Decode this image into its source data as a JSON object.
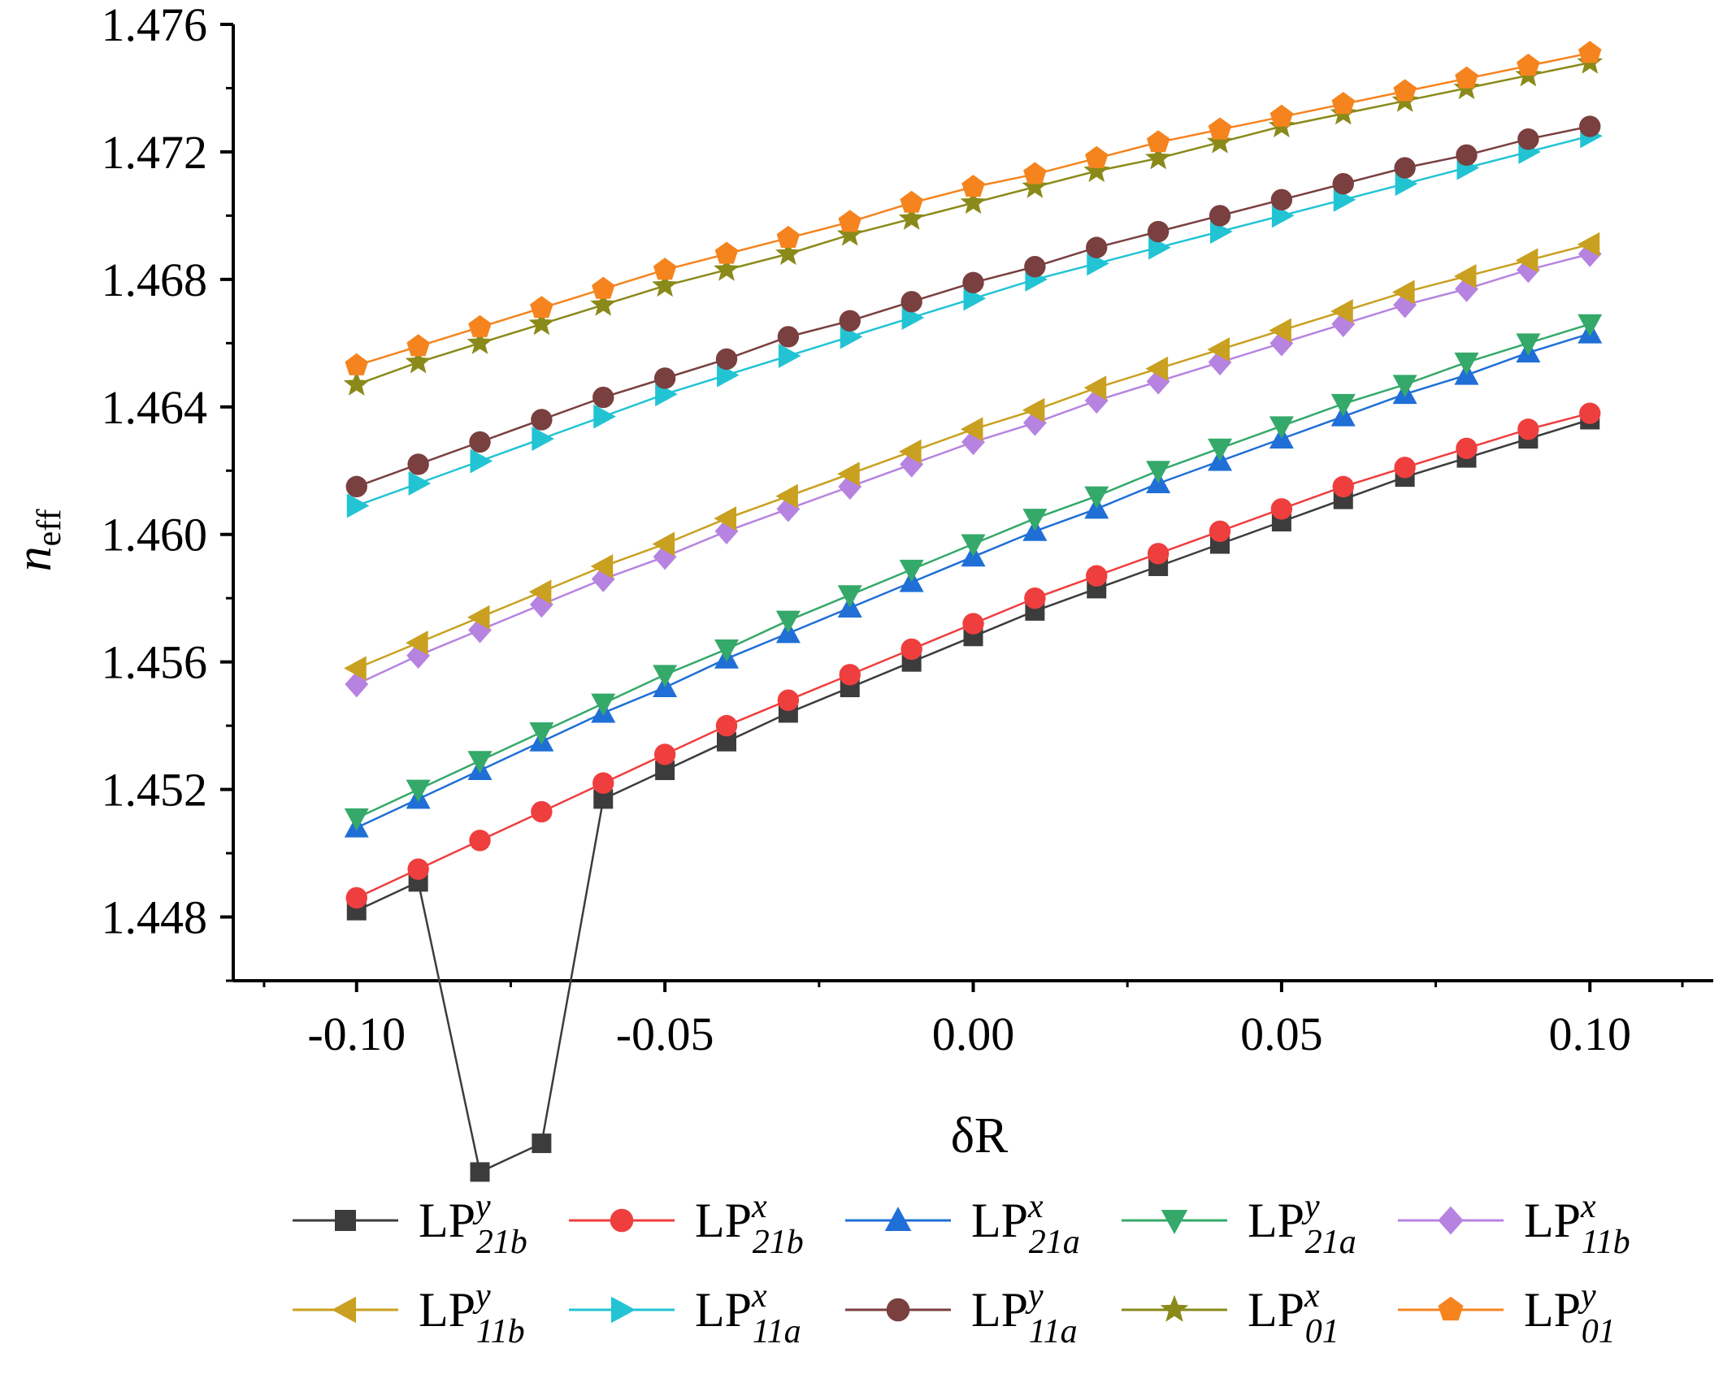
{
  "chart_data": {
    "type": "line",
    "title": "",
    "xlabel": "δR",
    "ylabel_main": "n",
    "ylabel_sub": "eff",
    "xlim": [
      -0.12,
      0.12
    ],
    "ylim": [
      1.446,
      1.476
    ],
    "xticks": [
      -0.1,
      -0.05,
      0.0,
      0.05,
      0.1
    ],
    "xtick_labels": [
      "-0.10",
      "-0.05",
      "0.00",
      "0.05",
      "0.10"
    ],
    "yticks": [
      1.448,
      1.452,
      1.456,
      1.46,
      1.464,
      1.468,
      1.472,
      1.476
    ],
    "ytick_labels": [
      "1.448",
      "1.452",
      "1.456",
      "1.460",
      "1.464",
      "1.468",
      "1.472",
      "1.476"
    ],
    "legend_position": "bottom",
    "x": [
      -0.1,
      -0.09,
      -0.08,
      -0.07,
      -0.06,
      -0.05,
      -0.04,
      -0.03,
      -0.02,
      -0.01,
      0.0,
      0.01,
      0.02,
      0.03,
      0.04,
      0.05,
      0.06,
      0.07,
      0.08,
      0.09,
      0.1
    ],
    "series": [
      {
        "name": "LP21b y",
        "base": "LP",
        "sup": "y",
        "sub": "21b",
        "color": "#3c3c3c",
        "marker": "square",
        "values": [
          1.4482,
          1.4491,
          1.44,
          1.4409,
          1.4517,
          1.4526,
          1.4535,
          1.4544,
          1.4552,
          1.456,
          1.4568,
          1.4576,
          1.4583,
          1.459,
          1.4597,
          1.4604,
          1.4611,
          1.4618,
          1.4624,
          1.463,
          1.4636
        ]
      },
      {
        "name": "LP21b x",
        "base": "LP",
        "sup": "x",
        "sub": "21b",
        "color": "#ef3e3e",
        "marker": "circle",
        "values": [
          1.4486,
          1.4495,
          1.4504,
          1.4513,
          1.4522,
          1.4531,
          1.454,
          1.4548,
          1.4556,
          1.4564,
          1.4572,
          1.458,
          1.4587,
          1.4594,
          1.4601,
          1.4608,
          1.4615,
          1.4621,
          1.4627,
          1.4633,
          1.4638
        ]
      },
      {
        "name": "LP21a x",
        "base": "LP",
        "sup": "x",
        "sub": "21a",
        "color": "#1f6fd6",
        "marker": "triangle-up",
        "values": [
          1.4508,
          1.4517,
          1.4526,
          1.4535,
          1.4544,
          1.4552,
          1.4561,
          1.4569,
          1.4577,
          1.4585,
          1.4593,
          1.4601,
          1.4608,
          1.4616,
          1.4623,
          1.463,
          1.4637,
          1.4644,
          1.465,
          1.4657,
          1.4663
        ]
      },
      {
        "name": "LP21a y",
        "base": "LP",
        "sup": "y",
        "sub": "21a",
        "color": "#35a96a",
        "marker": "triangle-down",
        "values": [
          1.4511,
          1.452,
          1.4529,
          1.4538,
          1.4547,
          1.4556,
          1.4564,
          1.4573,
          1.4581,
          1.4589,
          1.4597,
          1.4605,
          1.4612,
          1.462,
          1.4627,
          1.4634,
          1.4641,
          1.4647,
          1.4654,
          1.466,
          1.4666
        ]
      },
      {
        "name": "LP11b x",
        "base": "LP",
        "sup": "x",
        "sub": "11b",
        "color": "#b783e0",
        "marker": "diamond",
        "values": [
          1.4553,
          1.4562,
          1.457,
          1.4578,
          1.4586,
          1.4593,
          1.4601,
          1.4608,
          1.4615,
          1.4622,
          1.4629,
          1.4635,
          1.4642,
          1.4648,
          1.4654,
          1.466,
          1.4666,
          1.4672,
          1.4677,
          1.4683,
          1.4688
        ]
      },
      {
        "name": "LP11b y",
        "base": "LP",
        "sup": "y",
        "sub": "11b",
        "color": "#c9a020",
        "marker": "triangle-left",
        "values": [
          1.4558,
          1.4566,
          1.4574,
          1.4582,
          1.459,
          1.4597,
          1.4605,
          1.4612,
          1.4619,
          1.4626,
          1.4633,
          1.4639,
          1.4646,
          1.4652,
          1.4658,
          1.4664,
          1.467,
          1.4676,
          1.4681,
          1.4686,
          1.4691
        ]
      },
      {
        "name": "LP11a x",
        "base": "LP",
        "sup": "x",
        "sub": "11a",
        "color": "#22c4d4",
        "marker": "triangle-right",
        "values": [
          1.4609,
          1.4616,
          1.4623,
          1.463,
          1.4637,
          1.4644,
          1.465,
          1.4656,
          1.4662,
          1.4668,
          1.4674,
          1.468,
          1.4685,
          1.469,
          1.4695,
          1.47,
          1.4705,
          1.471,
          1.4715,
          1.472,
          1.4725
        ]
      },
      {
        "name": "LP11a y",
        "base": "LP",
        "sup": "y",
        "sub": "11a",
        "color": "#7a3f3f",
        "marker": "circle",
        "values": [
          1.4615,
          1.4622,
          1.4629,
          1.4636,
          1.4643,
          1.4649,
          1.4655,
          1.4662,
          1.4667,
          1.4673,
          1.4679,
          1.4684,
          1.469,
          1.4695,
          1.47,
          1.4705,
          1.471,
          1.4715,
          1.4719,
          1.4724,
          1.4728
        ]
      },
      {
        "name": "LP01 x",
        "base": "LP",
        "sup": "x",
        "sub": "01",
        "color": "#8a8a1a",
        "marker": "star",
        "values": [
          1.4647,
          1.4654,
          1.466,
          1.4666,
          1.4672,
          1.4678,
          1.4683,
          1.4688,
          1.4694,
          1.4699,
          1.4704,
          1.4709,
          1.4714,
          1.4718,
          1.4723,
          1.4728,
          1.4732,
          1.4736,
          1.474,
          1.4744,
          1.4748
        ]
      },
      {
        "name": "LP01 y",
        "base": "LP",
        "sup": "y",
        "sub": "01",
        "color": "#f5841f",
        "marker": "pentagon",
        "values": [
          1.4653,
          1.4659,
          1.4665,
          1.4671,
          1.4677,
          1.4683,
          1.4688,
          1.4693,
          1.4698,
          1.4704,
          1.4709,
          1.4713,
          1.4718,
          1.4723,
          1.4727,
          1.4731,
          1.4735,
          1.4739,
          1.4743,
          1.4747,
          1.4751
        ]
      }
    ]
  }
}
